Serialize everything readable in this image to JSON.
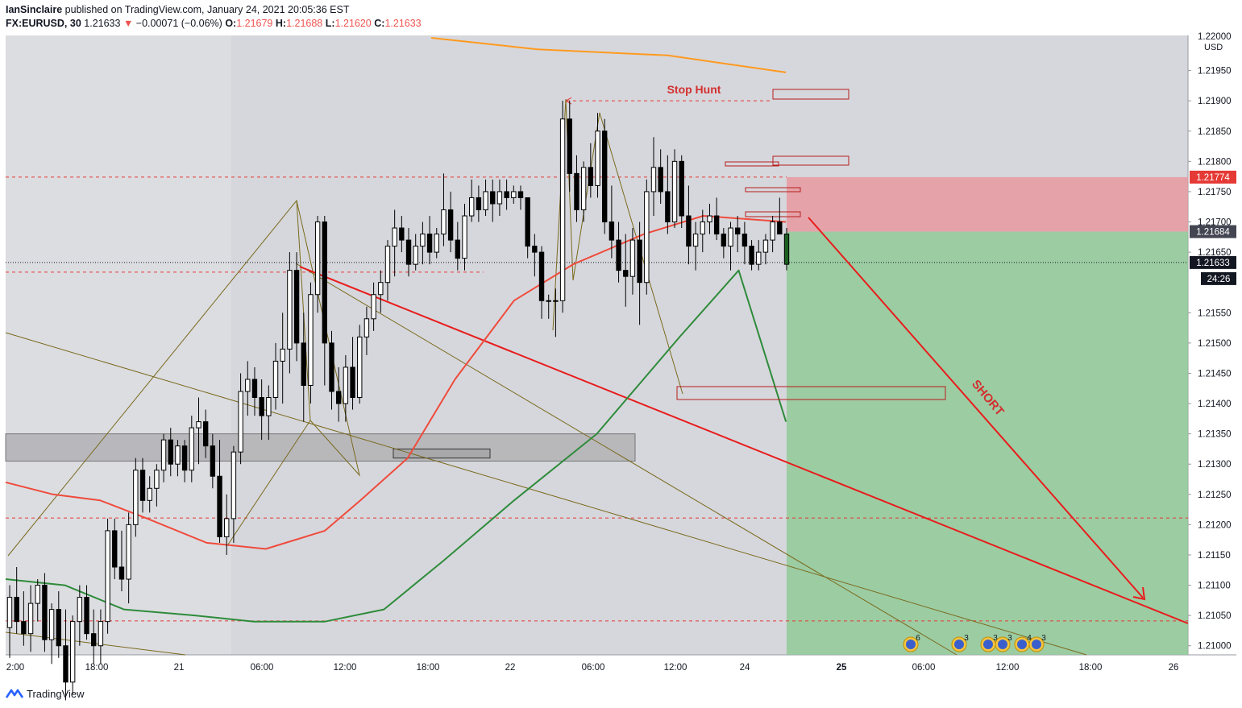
{
  "header": {
    "publisher": "IanSinclaire",
    "published_text": "published on TradingView.com, January 24, 2021 20:05:36 EST",
    "symbol": "FX:EURUSD, 30",
    "last": "1.21633",
    "change_arrow": "▼",
    "change": "−0.00071 (−0.06%)",
    "o_label": "O:",
    "o_value": "1.21679",
    "h_label": "H:",
    "h_value": "1.21688",
    "l_label": "L:",
    "l_value": "1.21620",
    "c_label": "C:",
    "c_value": "1.21633"
  },
  "footer": {
    "brand": "TradingView"
  },
  "colors": {
    "bull": "#ffffff",
    "bear": "#000000",
    "wick": "#000000",
    "ema_red": "#ef4b3c",
    "ema_green": "#2e8b3a",
    "sma_orange": "#ff9a1f",
    "dashed": "#e53935",
    "trendline": "#7a6a1e",
    "short_arrow": "#e81c1c",
    "stop_zone": "#e89aa0",
    "target_zone": "#8dc993",
    "grey_box": "#b5b5b8"
  },
  "chart_data": {
    "type": "candlestick",
    "symbol": "EURUSD",
    "timeframe": "30",
    "currency": "USD",
    "ylim": [
      1.20985,
      1.22008
    ],
    "y_ticks": [
      "1.21000",
      "1.21050",
      "1.21100",
      "1.21150",
      "1.21200",
      "1.21250",
      "1.21300",
      "1.21350",
      "1.21400",
      "1.21450",
      "1.21500",
      "1.21550",
      "1.21650",
      "1.21700",
      "1.21750",
      "1.21800",
      "1.21850",
      "1.21900",
      "1.21950"
    ],
    "y_top_label": "1.22000",
    "x_ticks": [
      "2:00",
      "18:00",
      "21",
      "06:00",
      "12:00",
      "18:00",
      "22",
      "06:00",
      "12:00",
      "24",
      "25",
      "06:00",
      "12:00",
      "18:00",
      "26"
    ],
    "bars": [
      [
        1.2103,
        1.211,
        1.2098,
        1.2108
      ],
      [
        1.2108,
        1.2113,
        1.2102,
        1.2104
      ],
      [
        1.2104,
        1.2109,
        1.21,
        1.2102
      ],
      [
        1.2102,
        1.211,
        1.2099,
        1.2107
      ],
      [
        1.2107,
        1.2111,
        1.2104,
        1.211
      ],
      [
        1.211,
        1.2112,
        1.2099,
        1.2101
      ],
      [
        1.2101,
        1.2107,
        1.2097,
        1.2106
      ],
      [
        1.2106,
        1.2109,
        1.2098,
        1.21
      ],
      [
        1.21,
        1.2106,
        1.2091,
        1.2094
      ],
      [
        1.2094,
        1.2105,
        1.2092,
        1.2104
      ],
      [
        1.2104,
        1.211,
        1.21,
        1.2108
      ],
      [
        1.2108,
        1.211,
        1.2101,
        1.2102
      ],
      [
        1.2102,
        1.2106,
        1.2097,
        1.21
      ],
      [
        1.21,
        1.2106,
        1.2097,
        1.2104
      ],
      [
        1.2104,
        1.2121,
        1.2102,
        1.2119
      ],
      [
        1.2119,
        1.2121,
        1.2111,
        1.2113
      ],
      [
        1.2113,
        1.2119,
        1.2109,
        1.2111
      ],
      [
        1.2111,
        1.2122,
        1.2107,
        1.212
      ],
      [
        1.212,
        1.2131,
        1.2118,
        1.2129
      ],
      [
        1.2129,
        1.2131,
        1.2122,
        1.2124
      ],
      [
        1.2124,
        1.2128,
        1.2122,
        1.2126
      ],
      [
        1.2126,
        1.213,
        1.2123,
        1.2129
      ],
      [
        1.2129,
        1.2135,
        1.2127,
        1.2134
      ],
      [
        1.2134,
        1.2136,
        1.2128,
        1.213
      ],
      [
        1.213,
        1.2134,
        1.2128,
        1.2133
      ],
      [
        1.2133,
        1.2134,
        1.2127,
        1.2129
      ],
      [
        1.2129,
        1.2138,
        1.2127,
        1.2136
      ],
      [
        1.2136,
        1.2141,
        1.213,
        1.2137
      ],
      [
        1.2137,
        1.2139,
        1.2131,
        1.2133
      ],
      [
        1.2133,
        1.2135,
        1.2126,
        1.2128
      ],
      [
        1.2128,
        1.2134,
        1.2117,
        1.2118
      ],
      [
        1.2118,
        1.2125,
        1.2115,
        1.2121
      ],
      [
        1.2121,
        1.2133,
        1.2117,
        1.2132
      ],
      [
        1.2132,
        1.2145,
        1.213,
        1.2142
      ],
      [
        1.2142,
        1.2147,
        1.2138,
        1.2144
      ],
      [
        1.2144,
        1.2146,
        1.2138,
        1.2141
      ],
      [
        1.2141,
        1.2144,
        1.2134,
        1.2138
      ],
      [
        1.2138,
        1.2143,
        1.2134,
        1.2141
      ],
      [
        1.2141,
        1.215,
        1.2139,
        1.2147
      ],
      [
        1.2147,
        1.2155,
        1.214,
        1.2149
      ],
      [
        1.2149,
        1.2165,
        1.2145,
        1.2162
      ],
      [
        1.2162,
        1.2165,
        1.2147,
        1.215
      ],
      [
        1.215,
        1.2155,
        1.2137,
        1.2143
      ],
      [
        1.2143,
        1.216,
        1.214,
        1.2158
      ],
      [
        1.2158,
        1.2171,
        1.2155,
        1.217
      ],
      [
        1.217,
        1.2171,
        1.2143,
        1.215
      ],
      [
        1.215,
        1.2152,
        1.2139,
        1.2142
      ],
      [
        1.2142,
        1.2146,
        1.2137,
        1.214
      ],
      [
        1.214,
        1.2148,
        1.2137,
        1.2146
      ],
      [
        1.2146,
        1.2151,
        1.2139,
        1.2141
      ],
      [
        1.2141,
        1.2153,
        1.214,
        1.2151
      ],
      [
        1.2151,
        1.2156,
        1.2148,
        1.2154
      ],
      [
        1.2154,
        1.216,
        1.2152,
        1.2158
      ],
      [
        1.2158,
        1.2162,
        1.2155,
        1.216
      ],
      [
        1.216,
        1.2167,
        1.2157,
        1.2166
      ],
      [
        1.2166,
        1.2172,
        1.2161,
        1.2169
      ],
      [
        1.2169,
        1.2171,
        1.2165,
        1.2167
      ],
      [
        1.2167,
        1.2169,
        1.2161,
        1.2163
      ],
      [
        1.2163,
        1.2168,
        1.2162,
        1.2166
      ],
      [
        1.2166,
        1.217,
        1.2163,
        1.2168
      ],
      [
        1.2168,
        1.2171,
        1.2163,
        1.2165
      ],
      [
        1.2165,
        1.2169,
        1.2164,
        1.2168
      ],
      [
        1.2168,
        1.2178,
        1.2166,
        1.2172
      ],
      [
        1.2172,
        1.2175,
        1.2165,
        1.2167
      ],
      [
        1.2167,
        1.217,
        1.2162,
        1.2164
      ],
      [
        1.2164,
        1.2173,
        1.2162,
        1.2171
      ],
      [
        1.2171,
        1.2177,
        1.217,
        1.2174
      ],
      [
        1.2174,
        1.2176,
        1.217,
        1.2172
      ],
      [
        1.2172,
        1.2177,
        1.2171,
        1.2175
      ],
      [
        1.2175,
        1.2177,
        1.217,
        1.2173
      ],
      [
        1.2173,
        1.2177,
        1.2171,
        1.2175
      ],
      [
        1.2175,
        1.2177,
        1.2172,
        1.2174
      ],
      [
        1.2174,
        1.2176,
        1.2173,
        1.2175
      ],
      [
        1.2175,
        1.2176,
        1.2172,
        1.2174
      ],
      [
        1.2174,
        1.2174,
        1.2164,
        1.2166
      ],
      [
        1.2166,
        1.2168,
        1.2161,
        1.2165
      ],
      [
        1.2165,
        1.2166,
        1.2154,
        1.2157
      ],
      [
        1.2157,
        1.2158,
        1.2154,
        1.2157
      ],
      [
        1.2157,
        1.2159,
        1.2151,
        1.2157
      ],
      [
        1.2157,
        1.219,
        1.2155,
        1.2187
      ],
      [
        1.2187,
        1.219,
        1.2175,
        1.2178
      ],
      [
        1.2178,
        1.2181,
        1.217,
        1.2172
      ],
      [
        1.2172,
        1.218,
        1.217,
        1.2179
      ],
      [
        1.2179,
        1.2183,
        1.2174,
        1.2176
      ],
      [
        1.2176,
        1.2188,
        1.2174,
        1.2185
      ],
      [
        1.2185,
        1.2187,
        1.2168,
        1.217
      ],
      [
        1.217,
        1.2176,
        1.2164,
        1.2167
      ],
      [
        1.2167,
        1.217,
        1.216,
        1.2162
      ],
      [
        1.2162,
        1.2168,
        1.2156,
        1.2161
      ],
      [
        1.2161,
        1.2169,
        1.2158,
        1.2167
      ],
      [
        1.2167,
        1.217,
        1.2153,
        1.216
      ],
      [
        1.216,
        1.2177,
        1.2158,
        1.2175
      ],
      [
        1.2175,
        1.2184,
        1.2171,
        1.2179
      ],
      [
        1.2179,
        1.2182,
        1.2173,
        1.2175
      ],
      [
        1.2175,
        1.2181,
        1.2168,
        1.217
      ],
      [
        1.217,
        1.2182,
        1.2169,
        1.218
      ],
      [
        1.218,
        1.2181,
        1.2169,
        1.2171
      ],
      [
        1.2171,
        1.2176,
        1.2163,
        1.2166
      ],
      [
        1.2166,
        1.217,
        1.2162,
        1.2168
      ],
      [
        1.2168,
        1.2172,
        1.2165,
        1.217
      ],
      [
        1.217,
        1.2173,
        1.2168,
        1.2171
      ],
      [
        1.2171,
        1.2174,
        1.2167,
        1.2168
      ],
      [
        1.2168,
        1.2169,
        1.2164,
        1.2166
      ],
      [
        1.2166,
        1.217,
        1.2162,
        1.2169
      ],
      [
        1.2169,
        1.2171,
        1.2165,
        1.2168
      ],
      [
        1.2168,
        1.217,
        1.2163,
        1.2166
      ],
      [
        1.2166,
        1.2167,
        1.2162,
        1.2163
      ],
      [
        1.2163,
        1.2167,
        1.2162,
        1.2165
      ],
      [
        1.2165,
        1.2168,
        1.2163,
        1.2167
      ],
      [
        1.2167,
        1.2171,
        1.2165,
        1.217
      ],
      [
        1.217,
        1.2174,
        1.2168,
        1.2168
      ],
      [
        1.2168,
        1.2169,
        1.2162,
        1.2163
      ]
    ],
    "moving_averages": [
      {
        "style": "red EMA",
        "values": [
          [
            0,
            1.2127
          ],
          [
            0.04,
            1.2125
          ],
          [
            0.08,
            1.2124
          ],
          [
            0.12,
            1.2121
          ],
          [
            0.17,
            1.2117
          ],
          [
            0.22,
            1.2116
          ],
          [
            0.27,
            1.2119
          ],
          [
            0.3,
            1.2124
          ],
          [
            0.34,
            1.2131
          ],
          [
            0.38,
            1.2144
          ],
          [
            0.43,
            1.2157
          ],
          [
            0.48,
            1.2163
          ],
          [
            0.54,
            1.2168
          ],
          [
            0.59,
            1.2171
          ],
          [
            0.66,
            1.217
          ]
        ]
      },
      {
        "style": "green EMA",
        "values": [
          [
            0,
            1.2111
          ],
          [
            0.05,
            1.211
          ],
          [
            0.1,
            1.2106
          ],
          [
            0.16,
            1.2105
          ],
          [
            0.21,
            1.2104
          ],
          [
            0.27,
            1.2104
          ],
          [
            0.32,
            1.2106
          ],
          [
            0.37,
            1.2114
          ],
          [
            0.43,
            1.2124
          ],
          [
            0.5,
            1.2135
          ],
          [
            0.57,
            1.2151
          ],
          [
            0.62,
            1.2162
          ],
          [
            0.66,
            1.2137
          ]
        ]
      },
      {
        "style": "orange SMA",
        "values": [
          [
            0.36,
            1.22004
          ],
          [
            0.45,
            1.21985
          ],
          [
            0.56,
            1.21975
          ],
          [
            0.66,
            1.21947
          ]
        ]
      }
    ],
    "horizontal_levels": [
      1.21774,
      1.21684,
      1.21633,
      1.21211,
      1.21041
    ],
    "axis_labels": [
      {
        "text": "1.21774",
        "type": "stop"
      },
      {
        "text": "1.21684",
        "type": "entry"
      },
      {
        "text": "1.21633",
        "type": "last"
      },
      {
        "text": "24:26",
        "type": "countdown"
      }
    ],
    "position": {
      "direction": "short",
      "entry": 1.21684,
      "stop": 1.21774,
      "target": 1.20985
    },
    "annotations": [
      {
        "text": "Stop Hunt"
      },
      {
        "text": "SHORT"
      }
    ],
    "event_badges": [
      "6",
      "3",
      "3",
      "3",
      "4",
      "3"
    ]
  }
}
